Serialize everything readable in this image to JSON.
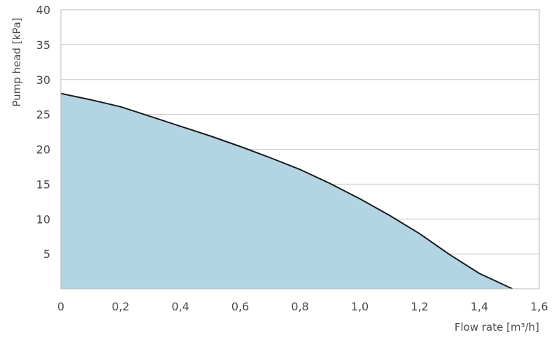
{
  "chart_data": {
    "type": "area",
    "xlabel": "Flow rate [m³/h]",
    "ylabel": "Pump head [kPa]",
    "xlim": [
      0,
      1.6
    ],
    "ylim": [
      0,
      40
    ],
    "x_ticks": [
      "0",
      "0,2",
      "0,4",
      "0,6",
      "0,8",
      "1,0",
      "1,2",
      "1,4",
      "1,6"
    ],
    "y_ticks": [
      "5",
      "10",
      "15",
      "20",
      "25",
      "30",
      "35",
      "40"
    ],
    "grid": "horizontal",
    "colors": {
      "fill": "#b3d4e3",
      "line": "#1a1a1a",
      "grid": "#c8c8c8",
      "frame": "#b8b8b8"
    },
    "series": [
      {
        "x": [
          0,
          0.1,
          0.2,
          0.3,
          0.4,
          0.5,
          0.6,
          0.7,
          0.8,
          0.9,
          1.0,
          1.1,
          1.2,
          1.3,
          1.4,
          1.51
        ],
        "y": [
          28,
          27.1,
          26.1,
          24.7,
          23.3,
          21.9,
          20.4,
          18.8,
          17.1,
          15.1,
          12.9,
          10.5,
          7.9,
          4.9,
          2.2,
          0
        ]
      }
    ]
  }
}
